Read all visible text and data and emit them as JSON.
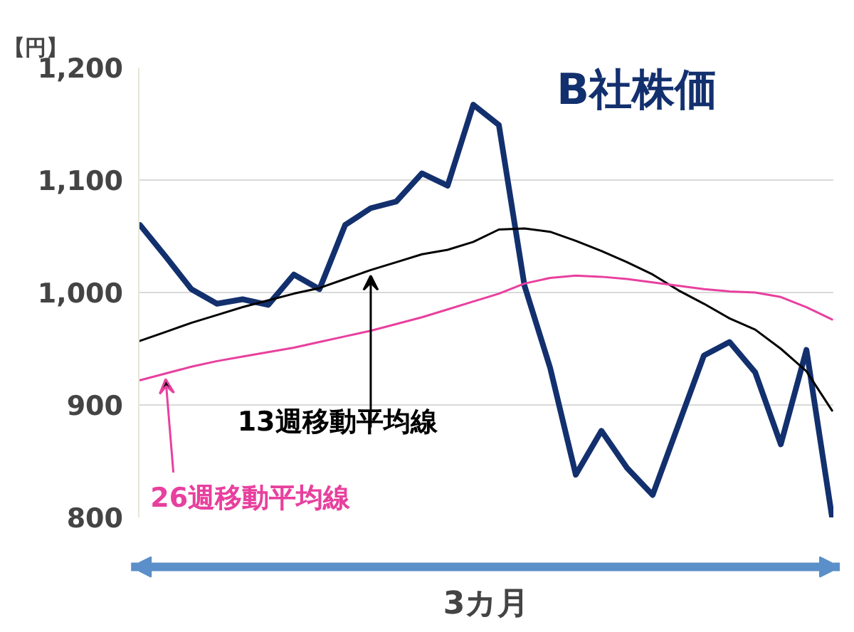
{
  "chart_data": {
    "type": "line",
    "title": "B社株価",
    "ylabel": "【円】",
    "xlabel": "3カ月",
    "categories": [
      null,
      null,
      null,
      null,
      null,
      null,
      null,
      null,
      null,
      null,
      null,
      null,
      null,
      null,
      null,
      null,
      null,
      null,
      null,
      null,
      null,
      null,
      null,
      null,
      null,
      null,
      null,
      null
    ],
    "series": [
      {
        "color": "#13306e",
        "values": [
          1060,
          1032,
          1003,
          990,
          994,
          989,
          1016,
          1003,
          1060,
          1075,
          1081,
          1106,
          1095,
          1167,
          1149,
          1006,
          933,
          838,
          877,
          844,
          820,
          882,
          944,
          956,
          929,
          865,
          949,
          800
        ]
      },
      {
        "name": "13週移動平均線",
        "color": "#000000",
        "values": [
          957,
          965,
          973,
          980,
          987,
          993,
          999,
          1004,
          1012,
          1020,
          1027,
          1034,
          1038,
          1045,
          1056,
          1057,
          1054,
          1046,
          1037,
          1027,
          1016,
          1002,
          990,
          977,
          967,
          950,
          930,
          895
        ]
      },
      {
        "name": "26週移動平均線",
        "color": "#e8409e",
        "values": [
          922,
          928,
          934,
          939,
          943,
          947,
          951,
          956,
          961,
          966,
          972,
          978,
          985,
          992,
          999,
          1008,
          1013,
          1015,
          1014,
          1012,
          1009,
          1006,
          1003,
          1001,
          1000,
          996,
          987,
          976
        ]
      }
    ],
    "ylim": [
      800,
      1200
    ],
    "yticks": [
      {
        "value": 800,
        "label": "800"
      },
      {
        "value": 900,
        "label": "900"
      },
      {
        "value": 1000,
        "label": "1,000"
      },
      {
        "value": 1100,
        "label": "1,100"
      },
      {
        "value": 1200,
        "label": "1,200"
      }
    ],
    "grid": "y",
    "legend": false,
    "tick_labels": "y",
    "marker": "none",
    "line_style": "solid"
  }
}
